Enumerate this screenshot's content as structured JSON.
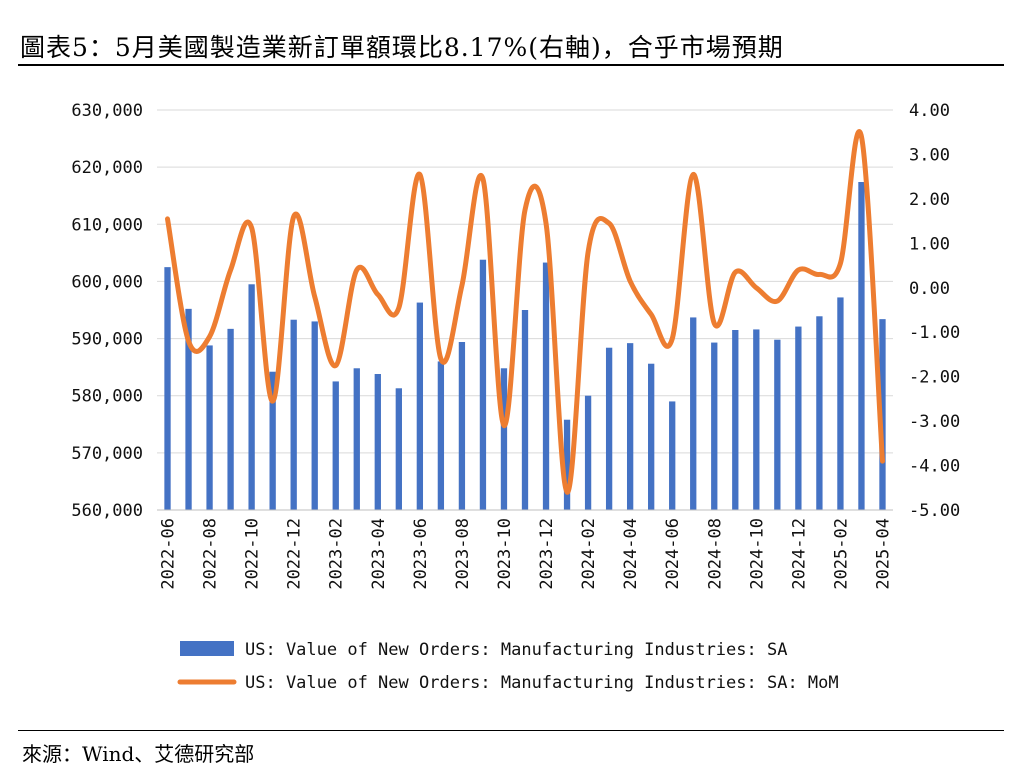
{
  "title": "圖表5：5月美國製造業新訂單額環比8.17%(右軸)，合乎市場預期",
  "source": "來源：Wind、艾德研究部",
  "colors": {
    "bar": "#4472C4",
    "line": "#ED7D31",
    "grid": "#d9d9d9"
  },
  "chart_data": {
    "type": "bar+line",
    "title": "圖表5：5月美國製造業新訂單額環比8.17%(右軸)，合乎市場預期",
    "categories": [
      "2022-06",
      "2022-07",
      "2022-08",
      "2022-09",
      "2022-10",
      "2022-11",
      "2022-12",
      "2023-01",
      "2023-02",
      "2023-03",
      "2023-04",
      "2023-05",
      "2023-06",
      "2023-07",
      "2023-08",
      "2023-09",
      "2023-10",
      "2023-11",
      "2023-12",
      "2024-01",
      "2024-02",
      "2024-03",
      "2024-04",
      "2024-05",
      "2024-06",
      "2024-07",
      "2024-08",
      "2024-09",
      "2024-10",
      "2024-11",
      "2024-12",
      "2025-01",
      "2025-02",
      "2025-03",
      "2025-04"
    ],
    "x_tick_labels": [
      "2022-06",
      "2022-08",
      "2022-10",
      "2022-12",
      "2023-02",
      "2023-04",
      "2023-06",
      "2023-08",
      "2023-10",
      "2023-12",
      "2024-02",
      "2024-04",
      "2024-06",
      "2024-08",
      "2024-10",
      "2024-12",
      "2025-02",
      "2025-04"
    ],
    "series": [
      {
        "name": "US: Value of New Orders: Manufacturing Industries: SA",
        "type": "bar",
        "axis": "left",
        "values": [
          602500,
          595200,
          588800,
          591700,
          599500,
          584200,
          593300,
          593000,
          582500,
          584800,
          583800,
          581300,
          596300,
          586000,
          589400,
          603800,
          584800,
          595000,
          603300,
          575800,
          580000,
          588400,
          589200,
          585600,
          579000,
          593700,
          589300,
          591500,
          591600,
          589800,
          592100,
          593900,
          597200,
          617400,
          593400
        ]
      },
      {
        "name": "US: Value of New Orders: Manufacturing Industries: SA: MoM",
        "type": "line",
        "axis": "right",
        "values": [
          1.55,
          -1.2,
          -1.1,
          0.4,
          1.35,
          -2.55,
          1.6,
          -0.2,
          -1.75,
          0.4,
          -0.15,
          -0.45,
          2.55,
          -1.6,
          0.05,
          2.45,
          -3.1,
          1.75,
          1.45,
          -4.6,
          0.8,
          1.45,
          0.15,
          -0.6,
          -1.15,
          2.55,
          -0.8,
          0.35,
          0.0,
          -0.3,
          0.4,
          0.3,
          0.55,
          3.4,
          -3.9
        ]
      }
    ],
    "y_left": {
      "min": 560000,
      "max": 630000,
      "step": 10000,
      "tick_labels": [
        "560,000",
        "570,000",
        "580,000",
        "590,000",
        "600,000",
        "610,000",
        "620,000",
        "630,000"
      ]
    },
    "y_right": {
      "min": -5,
      "max": 4,
      "step": 1,
      "tick_labels": [
        "-5.00",
        "-4.00",
        "-3.00",
        "-2.00",
        "-1.00",
        "0.00",
        "1.00",
        "2.00",
        "3.00",
        "4.00"
      ]
    },
    "grid": true,
    "legend_position": "bottom"
  }
}
